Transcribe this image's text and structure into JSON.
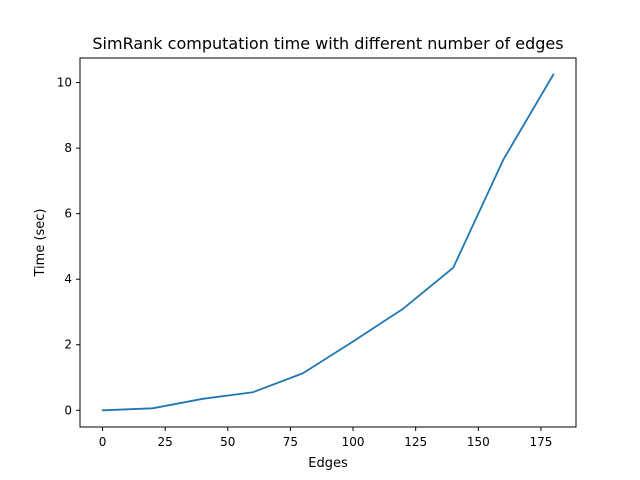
{
  "chart_data": {
    "type": "line",
    "title": "SimRank computation time with different number of edges",
    "xlabel": "Edges",
    "ylabel": "Time (sec)",
    "xlim": [
      -9,
      189
    ],
    "ylim": [
      -0.51,
      10.75
    ],
    "xticks": [
      0,
      25,
      50,
      75,
      100,
      125,
      150,
      175
    ],
    "xtick_labels": [
      "0",
      "25",
      "50",
      "75",
      "100",
      "125",
      "150",
      "175"
    ],
    "yticks": [
      0,
      2,
      4,
      6,
      8,
      10
    ],
    "ytick_labels": [
      "0",
      "2",
      "4",
      "6",
      "8",
      "10"
    ],
    "grid": false,
    "series": [
      {
        "color": "#1f77b4",
        "x": [
          0,
          20,
          40,
          60,
          80,
          100,
          120,
          140,
          160,
          180
        ],
        "y": [
          0.0,
          0.06,
          0.35,
          0.55,
          1.13,
          2.1,
          3.1,
          4.35,
          7.65,
          10.25
        ]
      }
    ]
  }
}
